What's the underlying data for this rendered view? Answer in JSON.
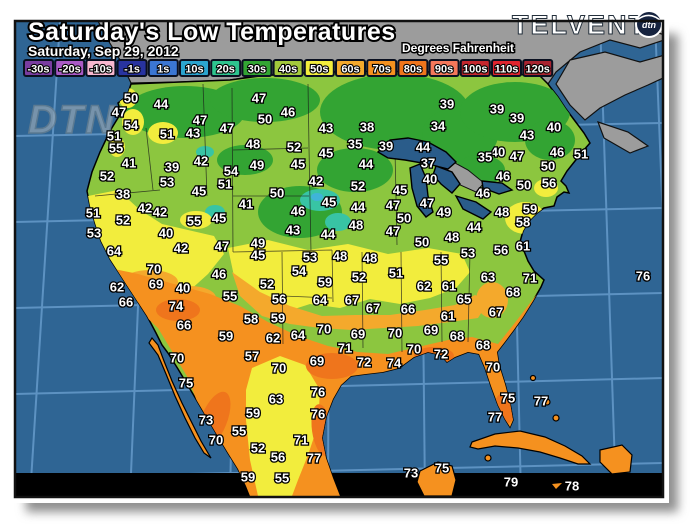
{
  "header": {
    "title": "Saturday's Low Temperatures",
    "date": "Saturday, Sep 29, 2012",
    "units_label": "Degrees Fahrenheit",
    "brand": "TELVENT",
    "brand_badge": "dtn",
    "watermark": "DTN"
  },
  "legend": {
    "items": [
      {
        "label": "-30s",
        "color": "#7a3da0"
      },
      {
        "label": "-20s",
        "color": "#a95ac5"
      },
      {
        "label": "-10s",
        "color": "#f9b7cf"
      },
      {
        "label": "-1s",
        "color": "#2833a0"
      },
      {
        "label": "1s",
        "color": "#3b76d2"
      },
      {
        "label": "10s",
        "color": "#2ba4cf"
      },
      {
        "label": "20s",
        "color": "#2ec48e"
      },
      {
        "label": "30s",
        "color": "#33a433"
      },
      {
        "label": "40s",
        "color": "#a3c83c"
      },
      {
        "label": "50s",
        "color": "#f2ed3d"
      },
      {
        "label": "60s",
        "color": "#f4a92c"
      },
      {
        "label": "70s",
        "color": "#f5911f"
      },
      {
        "label": "80s",
        "color": "#ef751c"
      },
      {
        "label": "90s",
        "color": "#f4775a"
      },
      {
        "label": "100s",
        "color": "#c4272e"
      },
      {
        "label": "110s",
        "color": "#e0242e"
      },
      {
        "label": "120s",
        "color": "#a82430"
      }
    ]
  },
  "map": {
    "colors": {
      "ocean": "#2f6594",
      "grid": "#5d92c2",
      "no_data_land": "#9c9c9c",
      "lake": "#2a5c8a",
      "border": "#000000"
    },
    "temperature_labels": [
      [
        50,
        131,
        98
      ],
      [
        44,
        161,
        104
      ],
      [
        47,
        119,
        112
      ],
      [
        54,
        131,
        125
      ],
      [
        47,
        200,
        120
      ],
      [
        43,
        193,
        133
      ],
      [
        47,
        227,
        128
      ],
      [
        51,
        114,
        136
      ],
      [
        51,
        167,
        134
      ],
      [
        55,
        116,
        148
      ],
      [
        41,
        129,
        163
      ],
      [
        39,
        172,
        167
      ],
      [
        42,
        201,
        161
      ],
      [
        54,
        231,
        171
      ],
      [
        52,
        107,
        176
      ],
      [
        53,
        167,
        182
      ],
      [
        45,
        199,
        191
      ],
      [
        51,
        225,
        184
      ],
      [
        38,
        123,
        194
      ],
      [
        42,
        145,
        208
      ],
      [
        42,
        160,
        212
      ],
      [
        51,
        93,
        213
      ],
      [
        52,
        123,
        220
      ],
      [
        55,
        194,
        221
      ],
      [
        45,
        219,
        218
      ],
      [
        47,
        259,
        98
      ],
      [
        46,
        288,
        112
      ],
      [
        50,
        265,
        119
      ],
      [
        43,
        326,
        128
      ],
      [
        38,
        367,
        127
      ],
      [
        39,
        447,
        104
      ],
      [
        34,
        438,
        126
      ],
      [
        48,
        253,
        144
      ],
      [
        52,
        294,
        147
      ],
      [
        45,
        326,
        153
      ],
      [
        35,
        355,
        144
      ],
      [
        39,
        386,
        146
      ],
      [
        44,
        423,
        147
      ],
      [
        49,
        257,
        165
      ],
      [
        45,
        298,
        164
      ],
      [
        37,
        428,
        163
      ],
      [
        44,
        366,
        164
      ],
      [
        40,
        430,
        179
      ],
      [
        42,
        316,
        181
      ],
      [
        52,
        358,
        186
      ],
      [
        45,
        400,
        190
      ],
      [
        50,
        277,
        193
      ],
      [
        41,
        246,
        204
      ],
      [
        46,
        298,
        211
      ],
      [
        45,
        329,
        202
      ],
      [
        44,
        358,
        207
      ],
      [
        47,
        393,
        205
      ],
      [
        47,
        427,
        203
      ],
      [
        49,
        444,
        212
      ],
      [
        50,
        404,
        218
      ],
      [
        43,
        293,
        230
      ],
      [
        48,
        356,
        225
      ],
      [
        44,
        328,
        234
      ],
      [
        47,
        393,
        231
      ],
      [
        39,
        497,
        109
      ],
      [
        39,
        517,
        118
      ],
      [
        40,
        554,
        127
      ],
      [
        43,
        527,
        135
      ],
      [
        40,
        498,
        152
      ],
      [
        35,
        485,
        157
      ],
      [
        47,
        517,
        156
      ],
      [
        46,
        557,
        152
      ],
      [
        51,
        581,
        154
      ],
      [
        50,
        548,
        166
      ],
      [
        46,
        503,
        176
      ],
      [
        50,
        524,
        185
      ],
      [
        56,
        549,
        183
      ],
      [
        46,
        483,
        193
      ],
      [
        48,
        502,
        212
      ],
      [
        59,
        530,
        209
      ],
      [
        58,
        523,
        222
      ],
      [
        44,
        474,
        227
      ],
      [
        53,
        94,
        233
      ],
      [
        64,
        114,
        251
      ],
      [
        40,
        166,
        233
      ],
      [
        42,
        181,
        248
      ],
      [
        47,
        222,
        246
      ],
      [
        70,
        154,
        269
      ],
      [
        69,
        156,
        284
      ],
      [
        40,
        183,
        288
      ],
      [
        46,
        219,
        274
      ],
      [
        62,
        117,
        287
      ],
      [
        66,
        126,
        302
      ],
      [
        74,
        176,
        306
      ],
      [
        66,
        184,
        325
      ],
      [
        55,
        230,
        296
      ],
      [
        59,
        226,
        336
      ],
      [
        70,
        177,
        358
      ],
      [
        75,
        186,
        383
      ],
      [
        49,
        258,
        243
      ],
      [
        45,
        258,
        255
      ],
      [
        53,
        310,
        257
      ],
      [
        48,
        340,
        256
      ],
      [
        48,
        370,
        258
      ],
      [
        50,
        422,
        242
      ],
      [
        48,
        452,
        237
      ],
      [
        55,
        441,
        260
      ],
      [
        54,
        299,
        271
      ],
      [
        52,
        359,
        277
      ],
      [
        51,
        396,
        273
      ],
      [
        52,
        267,
        284
      ],
      [
        59,
        325,
        282
      ],
      [
        62,
        424,
        286
      ],
      [
        61,
        449,
        286
      ],
      [
        56,
        279,
        299
      ],
      [
        64,
        320,
        300
      ],
      [
        67,
        352,
        300
      ],
      [
        67,
        373,
        308
      ],
      [
        66,
        408,
        309
      ],
      [
        61,
        448,
        316
      ],
      [
        58,
        251,
        319
      ],
      [
        59,
        278,
        318
      ],
      [
        62,
        273,
        338
      ],
      [
        64,
        298,
        335
      ],
      [
        70,
        324,
        329
      ],
      [
        69,
        358,
        334
      ],
      [
        70,
        395,
        333
      ],
      [
        69,
        431,
        330
      ],
      [
        68,
        457,
        336
      ],
      [
        57,
        252,
        356
      ],
      [
        71,
        345,
        348
      ],
      [
        70,
        279,
        368
      ],
      [
        69,
        317,
        361
      ],
      [
        72,
        364,
        362
      ],
      [
        74,
        394,
        363
      ],
      [
        70,
        414,
        349
      ],
      [
        72,
        441,
        354
      ],
      [
        53,
        468,
        253
      ],
      [
        56,
        501,
        250
      ],
      [
        61,
        523,
        246
      ],
      [
        63,
        488,
        277
      ],
      [
        71,
        530,
        278
      ],
      [
        68,
        513,
        292
      ],
      [
        65,
        464,
        299
      ],
      [
        67,
        496,
        312
      ],
      [
        68,
        483,
        345
      ],
      [
        70,
        493,
        367
      ],
      [
        76,
        643,
        276
      ],
      [
        75,
        508,
        398
      ],
      [
        77,
        541,
        401
      ],
      [
        77,
        495,
        417
      ],
      [
        73,
        411,
        473
      ],
      [
        75,
        442,
        468
      ],
      [
        79,
        511,
        482
      ],
      [
        78,
        572,
        486
      ],
      [
        63,
        276,
        399
      ],
      [
        76,
        318,
        392
      ],
      [
        59,
        253,
        413
      ],
      [
        76,
        318,
        414
      ],
      [
        73,
        206,
        420
      ],
      [
        55,
        239,
        431
      ],
      [
        70,
        216,
        440
      ],
      [
        52,
        258,
        448
      ],
      [
        71,
        301,
        440
      ],
      [
        56,
        278,
        457
      ],
      [
        77,
        314,
        458
      ],
      [
        59,
        248,
        477
      ],
      [
        55,
        282,
        478
      ]
    ]
  }
}
